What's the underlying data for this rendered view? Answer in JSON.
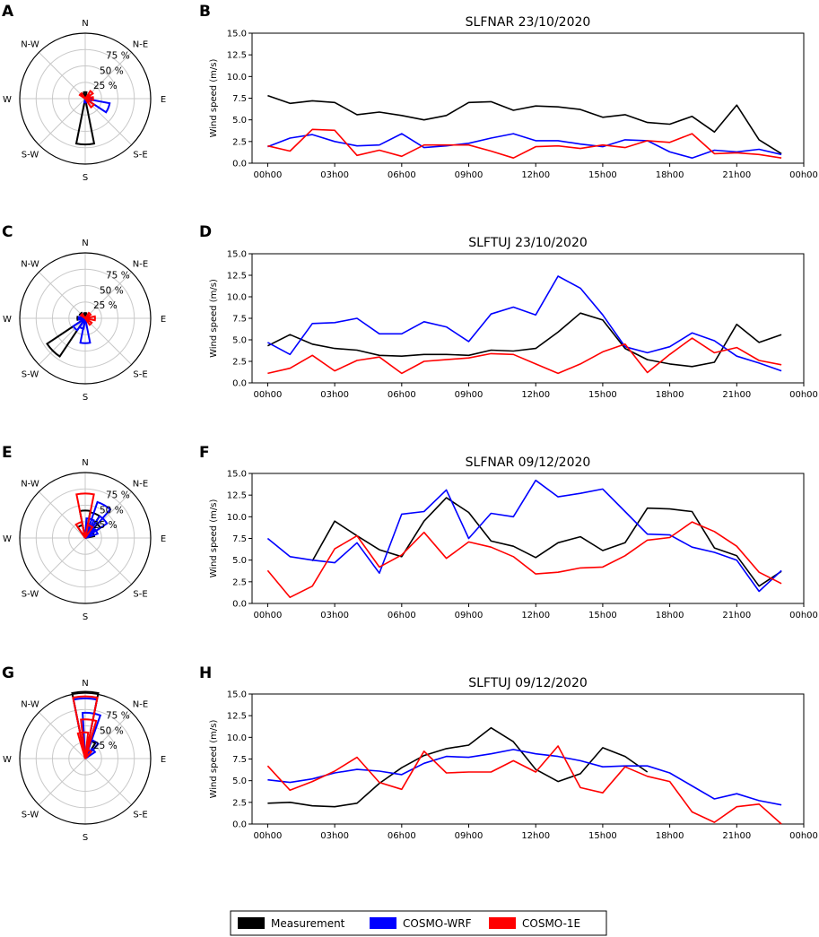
{
  "chart_data": [
    {
      "panel": "A",
      "type": "polar_rose",
      "directions": [
        "N",
        "N-E",
        "E",
        "S-E",
        "S",
        "S-W",
        "W",
        "N-W"
      ],
      "radial_tick_labels": [
        "25 %",
        "50 %",
        "75 %"
      ],
      "rmax_percent": 100,
      "series": [
        {
          "name": "Measurement",
          "color": "#000000",
          "wedges": [
            [
              180,
              70
            ],
            [
              0,
              10
            ],
            [
              330,
              8
            ]
          ]
        },
        {
          "name": "COSMO-WRF",
          "color": "#0000ff",
          "wedges": [
            [
              112,
              38
            ],
            [
              95,
              10
            ],
            [
              180,
              6
            ]
          ]
        },
        {
          "name": "COSMO-1E",
          "color": "#ff0000",
          "wedges": [
            [
              135,
              16
            ],
            [
              45,
              14
            ],
            [
              90,
              12
            ],
            [
              315,
              10
            ],
            [
              60,
              8
            ]
          ]
        }
      ]
    },
    {
      "panel": "B",
      "type": "line",
      "title": "SLFNAR 23/10/2020",
      "xlabel": "",
      "ylabel": "Wind speed (m/s)",
      "ylim": [
        0,
        15
      ],
      "xlim": [
        -0.7,
        24.0
      ],
      "yticks": [
        0,
        2.5,
        5,
        7.5,
        10,
        12.5,
        15
      ],
      "ytick_labels": [
        "0.0",
        "2.5",
        "5.0",
        "7.5",
        "10.0",
        "12.5",
        "15.0"
      ],
      "xtick_labels": [
        "00h00",
        "03h00",
        "06h00",
        "09h00",
        "12h00",
        "15h00",
        "18h00",
        "21h00",
        "00h00"
      ],
      "series": [
        {
          "name": "Measurement",
          "color": "#000000",
          "x": [
            0,
            1,
            2,
            3,
            4,
            5,
            6,
            7,
            8,
            9,
            10,
            11,
            12,
            13,
            14,
            15,
            16,
            17,
            18,
            19,
            20,
            21,
            22,
            23
          ],
          "values": [
            7.8,
            6.9,
            7.2,
            7.0,
            5.6,
            5.9,
            5.5,
            5.0,
            5.5,
            7.0,
            7.1,
            6.1,
            6.6,
            6.5,
            6.2,
            5.3,
            5.6,
            4.7,
            4.5,
            5.4,
            3.6,
            6.7,
            2.7,
            1.1
          ]
        },
        {
          "name": "COSMO-WRF",
          "color": "#0000ff",
          "x": [
            0,
            1,
            2,
            3,
            4,
            5,
            6,
            7,
            8,
            9,
            10,
            11,
            12,
            13,
            14,
            15,
            16,
            17,
            18,
            19,
            20,
            21,
            22,
            23
          ],
          "values": [
            1.9,
            2.9,
            3.3,
            2.5,
            2.0,
            2.1,
            3.4,
            1.8,
            2.0,
            2.3,
            2.9,
            3.4,
            2.6,
            2.6,
            2.2,
            1.9,
            2.7,
            2.6,
            1.3,
            0.6,
            1.5,
            1.3,
            1.6,
            1.0
          ]
        },
        {
          "name": "COSMO-1E",
          "color": "#ff0000",
          "x": [
            0,
            1,
            2,
            3,
            4,
            5,
            6,
            7,
            8,
            9,
            10,
            11,
            12,
            13,
            14,
            15,
            16,
            17,
            18,
            19,
            20,
            21,
            22,
            23
          ],
          "values": [
            2.0,
            1.4,
            3.9,
            3.8,
            0.9,
            1.5,
            0.8,
            2.1,
            2.1,
            2.1,
            1.4,
            0.6,
            1.9,
            2.0,
            1.7,
            2.1,
            1.8,
            2.6,
            2.4,
            3.4,
            1.1,
            1.2,
            1.0,
            0.6
          ]
        }
      ]
    },
    {
      "panel": "C",
      "type": "polar_rose",
      "directions": [
        "N",
        "N-E",
        "E",
        "S-E",
        "S",
        "S-W",
        "W",
        "N-W"
      ],
      "radial_tick_labels": [
        "25 %",
        "50 %",
        "75 %"
      ],
      "rmax_percent": 100,
      "series": [
        {
          "name": "Measurement",
          "color": "#000000",
          "wedges": [
            [
              225,
              70
            ],
            [
              270,
              12
            ],
            [
              315,
              10
            ],
            [
              0,
              8
            ]
          ]
        },
        {
          "name": "COSMO-WRF",
          "color": "#0000ff",
          "wedges": [
            [
              180,
              38
            ],
            [
              225,
              22
            ],
            [
              270,
              10
            ],
            [
              315,
              8
            ],
            [
              200,
              16
            ]
          ]
        },
        {
          "name": "COSMO-1E",
          "color": "#ff0000",
          "wedges": [
            [
              90,
              15
            ],
            [
              45,
              10
            ],
            [
              135,
              12
            ],
            [
              315,
              8
            ]
          ]
        }
      ]
    },
    {
      "panel": "D",
      "type": "line",
      "title": "SLFTUJ 23/10/2020",
      "xlabel": "",
      "ylabel": "Wind speed (m/s)",
      "ylim": [
        0,
        15
      ],
      "xlim": [
        -0.7,
        24.0
      ],
      "yticks": [
        0,
        2.5,
        5,
        7.5,
        10,
        12.5,
        15
      ],
      "ytick_labels": [
        "0.0",
        "2.5",
        "5.0",
        "7.5",
        "10.0",
        "12.5",
        "15.0"
      ],
      "xtick_labels": [
        "00h00",
        "03h00",
        "06h00",
        "09h00",
        "12h00",
        "15h00",
        "18h00",
        "21h00",
        "00h00"
      ],
      "series": [
        {
          "name": "Measurement",
          "color": "#000000",
          "x": [
            0,
            1,
            2,
            3,
            4,
            5,
            6,
            7,
            8,
            9,
            10,
            11,
            12,
            13,
            14,
            15,
            16,
            17,
            18,
            19,
            20,
            21,
            22,
            23
          ],
          "values": [
            4.3,
            5.6,
            4.5,
            4.0,
            3.8,
            3.2,
            3.1,
            3.3,
            3.3,
            3.2,
            3.8,
            3.7,
            4.0,
            5.9,
            8.1,
            7.3,
            4.0,
            2.7,
            2.2,
            1.9,
            2.4,
            6.8,
            4.7,
            5.6
          ]
        },
        {
          "name": "COSMO-WRF",
          "color": "#0000ff",
          "x": [
            0,
            1,
            2,
            3,
            4,
            5,
            6,
            7,
            8,
            9,
            10,
            11,
            12,
            13,
            14,
            15,
            16,
            17,
            18,
            19,
            20,
            21,
            22,
            23
          ],
          "values": [
            4.7,
            3.3,
            6.9,
            7.0,
            7.5,
            5.7,
            5.7,
            7.1,
            6.5,
            4.8,
            8.0,
            8.8,
            7.9,
            12.4,
            11.0,
            7.9,
            4.2,
            3.5,
            4.2,
            5.8,
            4.9,
            3.1,
            2.3,
            1.4
          ]
        },
        {
          "name": "COSMO-1E",
          "color": "#ff0000",
          "x": [
            0,
            1,
            2,
            3,
            4,
            5,
            6,
            7,
            8,
            9,
            10,
            11,
            12,
            13,
            14,
            15,
            16,
            17,
            18,
            19,
            20,
            21,
            22,
            23
          ],
          "values": [
            1.1,
            1.7,
            3.2,
            1.4,
            2.6,
            3.0,
            1.1,
            2.5,
            2.7,
            2.9,
            3.4,
            3.3,
            2.2,
            1.1,
            2.2,
            3.6,
            4.5,
            1.2,
            3.3,
            5.2,
            3.5,
            4.1,
            2.6,
            2.1
          ]
        }
      ]
    },
    {
      "panel": "E",
      "type": "polar_rose",
      "directions": [
        "N",
        "N-E",
        "E",
        "S-E",
        "S",
        "S-W",
        "W",
        "N-W"
      ],
      "radial_tick_labels": [
        "25 %",
        "50 %",
        "75 %"
      ],
      "rmax_percent": 100,
      "series": [
        {
          "name": "Measurement",
          "color": "#000000",
          "wedges": [
            [
              0,
              42
            ],
            [
              22,
              40
            ],
            [
              45,
              28
            ],
            [
              337,
              20
            ],
            [
              67,
              14
            ]
          ]
        },
        {
          "name": "COSMO-WRF",
          "color": "#0000ff",
          "wedges": [
            [
              30,
              58
            ],
            [
              45,
              40
            ],
            [
              15,
              30
            ],
            [
              60,
              20
            ]
          ]
        },
        {
          "name": "COSMO-1E",
          "color": "#ff0000",
          "wedges": [
            [
              0,
              68
            ],
            [
              337,
              25
            ],
            [
              22,
              20
            ]
          ]
        }
      ]
    },
    {
      "panel": "F",
      "type": "line",
      "title": "SLFNAR 09/12/2020",
      "xlabel": "",
      "ylabel": "Wind speed (m/s)",
      "ylim": [
        0,
        15
      ],
      "xlim": [
        -0.7,
        24.0
      ],
      "yticks": [
        0,
        2.5,
        5,
        7.5,
        10,
        12.5,
        15
      ],
      "ytick_labels": [
        "0.0",
        "2.5",
        "5.0",
        "7.5",
        "10.0",
        "12.5",
        "15.0"
      ],
      "xtick_labels": [
        "00h00",
        "03h00",
        "06h00",
        "09h00",
        "12h00",
        "15h00",
        "18h00",
        "21h00",
        "00h00"
      ],
      "series": [
        {
          "name": "Measurement",
          "color": "#000000",
          "x": [
            2,
            3,
            4,
            5,
            6,
            7,
            8,
            9,
            10,
            11,
            12,
            13,
            14,
            15,
            16,
            17,
            18,
            19,
            20,
            21,
            22,
            23
          ],
          "values": [
            4.9,
            9.5,
            7.8,
            6.2,
            5.4,
            9.5,
            12.2,
            10.5,
            7.2,
            6.6,
            5.3,
            7.0,
            7.7,
            6.1,
            7.0,
            11.0,
            10.9,
            10.6,
            6.4,
            5.5,
            2.0,
            3.7
          ]
        },
        {
          "name": "COSMO-WRF",
          "color": "#0000ff",
          "x": [
            0,
            1,
            2,
            3,
            4,
            5,
            6,
            7,
            8,
            9,
            10,
            11,
            12,
            13,
            14,
            15,
            16,
            17,
            18,
            19,
            20,
            21,
            22,
            23
          ],
          "values": [
            7.5,
            5.4,
            5.0,
            4.7,
            7.0,
            3.5,
            10.3,
            10.6,
            13.1,
            7.5,
            10.4,
            10.0,
            14.2,
            12.3,
            12.7,
            13.2,
            10.6,
            8.0,
            7.9,
            6.5,
            5.9,
            5.0,
            1.4,
            3.8
          ]
        },
        {
          "name": "COSMO-1E",
          "color": "#ff0000",
          "x": [
            0,
            1,
            2,
            3,
            4,
            5,
            6,
            7,
            8,
            9,
            10,
            11,
            12,
            13,
            14,
            15,
            16,
            17,
            18,
            19,
            20,
            21,
            22,
            23
          ],
          "values": [
            3.8,
            0.7,
            2.0,
            6.3,
            7.8,
            4.2,
            5.6,
            8.2,
            5.2,
            7.1,
            6.5,
            5.4,
            3.4,
            3.6,
            4.1,
            4.2,
            5.5,
            7.3,
            7.6,
            9.4,
            8.3,
            6.6,
            3.6,
            2.3
          ]
        }
      ]
    },
    {
      "panel": "G",
      "type": "polar_rose",
      "directions": [
        "N",
        "N-E",
        "E",
        "S-E",
        "S",
        "S-W",
        "W",
        "N-W"
      ],
      "radial_tick_labels": [
        "25 %",
        "50 %",
        "75 %"
      ],
      "rmax_percent": 100,
      "series": [
        {
          "name": "Measurement",
          "color": "#000000",
          "wedges": [
            [
              0,
              105
            ],
            [
              22,
              28
            ]
          ]
        },
        {
          "name": "COSMO-WRF",
          "color": "#0000ff",
          "wedges": [
            [
              0,
              92
            ],
            [
              8,
              70
            ],
            [
              30,
              30
            ],
            [
              45,
              18
            ]
          ]
        },
        {
          "name": "COSMO-1E",
          "color": "#ff0000",
          "wedges": [
            [
              0,
              95
            ],
            [
              5,
              60
            ],
            [
              355,
              40
            ],
            [
              30,
              14
            ]
          ]
        }
      ]
    },
    {
      "panel": "H",
      "type": "line",
      "title": "SLFTUJ 09/12/2020",
      "xlabel": "",
      "ylabel": "Wind speed (m/s)",
      "ylim": [
        0,
        15
      ],
      "xlim": [
        -0.7,
        24.0
      ],
      "yticks": [
        0,
        2.5,
        5,
        7.5,
        10,
        12.5,
        15
      ],
      "ytick_labels": [
        "0.0",
        "2.5",
        "5.0",
        "7.5",
        "10.0",
        "12.5",
        "15.0"
      ],
      "xtick_labels": [
        "00h00",
        "03h00",
        "06h00",
        "09h00",
        "12h00",
        "15h00",
        "18h00",
        "21h00",
        "00h00"
      ],
      "series": [
        {
          "name": "Measurement",
          "color": "#000000",
          "x": [
            0,
            1,
            2,
            3,
            4,
            5,
            6,
            7,
            8,
            9,
            10,
            11,
            12,
            13,
            14,
            15,
            16,
            17
          ],
          "values": [
            2.4,
            2.5,
            2.1,
            2.0,
            2.4,
            4.7,
            6.5,
            7.9,
            8.7,
            9.1,
            11.1,
            9.5,
            6.3,
            4.9,
            5.8,
            8.8,
            7.8,
            6.0
          ]
        },
        {
          "name": "COSMO-WRF",
          "color": "#0000ff",
          "x": [
            0,
            1,
            2,
            3,
            4,
            5,
            6,
            7,
            8,
            9,
            10,
            11,
            12,
            13,
            14,
            15,
            16,
            17,
            18,
            19,
            20,
            21,
            22,
            23
          ],
          "values": [
            5.1,
            4.8,
            5.2,
            5.9,
            6.3,
            6.1,
            5.7,
            7.0,
            7.8,
            7.7,
            8.1,
            8.6,
            8.1,
            7.8,
            7.3,
            6.6,
            6.7,
            6.7,
            5.9,
            4.4,
            2.9,
            3.5,
            2.7,
            2.2
          ]
        },
        {
          "name": "COSMO-1E",
          "color": "#ff0000",
          "x": [
            0,
            1,
            2,
            3,
            4,
            5,
            6,
            7,
            8,
            9,
            10,
            11,
            12,
            13,
            14,
            15,
            16,
            17,
            18,
            19,
            20,
            21,
            22,
            23
          ],
          "values": [
            6.7,
            3.9,
            4.9,
            6.1,
            7.7,
            4.8,
            4.0,
            8.4,
            5.9,
            6.0,
            6.0,
            7.3,
            6.0,
            9.0,
            4.2,
            3.6,
            6.6,
            5.5,
            4.9,
            1.4,
            0.2,
            2.0,
            2.3,
            0.0
          ]
        }
      ]
    }
  ],
  "legend": {
    "entries": [
      {
        "label": "Measurement",
        "color": "#000000"
      },
      {
        "label": "COSMO-WRF",
        "color": "#0000ff"
      },
      {
        "label": "COSMO-1E",
        "color": "#ff0000"
      }
    ]
  }
}
